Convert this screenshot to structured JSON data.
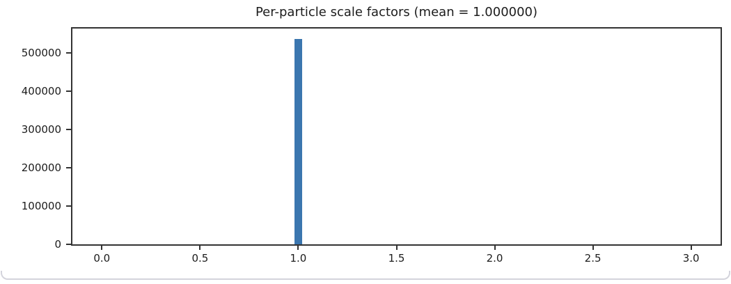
{
  "chart_data": {
    "type": "bar",
    "title": "Per-particle scale factors (mean = 1.000000)",
    "xlabel": "",
    "ylabel": "",
    "xlim": [
      -0.15,
      3.15
    ],
    "ylim": [
      0,
      563000
    ],
    "grid": false,
    "legend": "none",
    "x_ticks": {
      "values": [
        0.0,
        0.5,
        1.0,
        1.5,
        2.0,
        2.5,
        3.0
      ],
      "labels": [
        "0.0",
        "0.5",
        "1.0",
        "1.5",
        "2.0",
        "2.5",
        "3.0"
      ]
    },
    "y_ticks": {
      "values": [
        0,
        100000,
        200000,
        300000,
        400000,
        500000
      ],
      "labels": [
        "0",
        "100000",
        "200000",
        "300000",
        "400000",
        "500000"
      ]
    },
    "bars": [
      {
        "x": 1.0,
        "width": 0.042,
        "value": 536000
      }
    ]
  },
  "colors": {
    "bar": "#3b76af",
    "spine": "#333333",
    "text": "#1c1c1c",
    "background": "#ffffff",
    "card_border": "#d4d4dc"
  }
}
